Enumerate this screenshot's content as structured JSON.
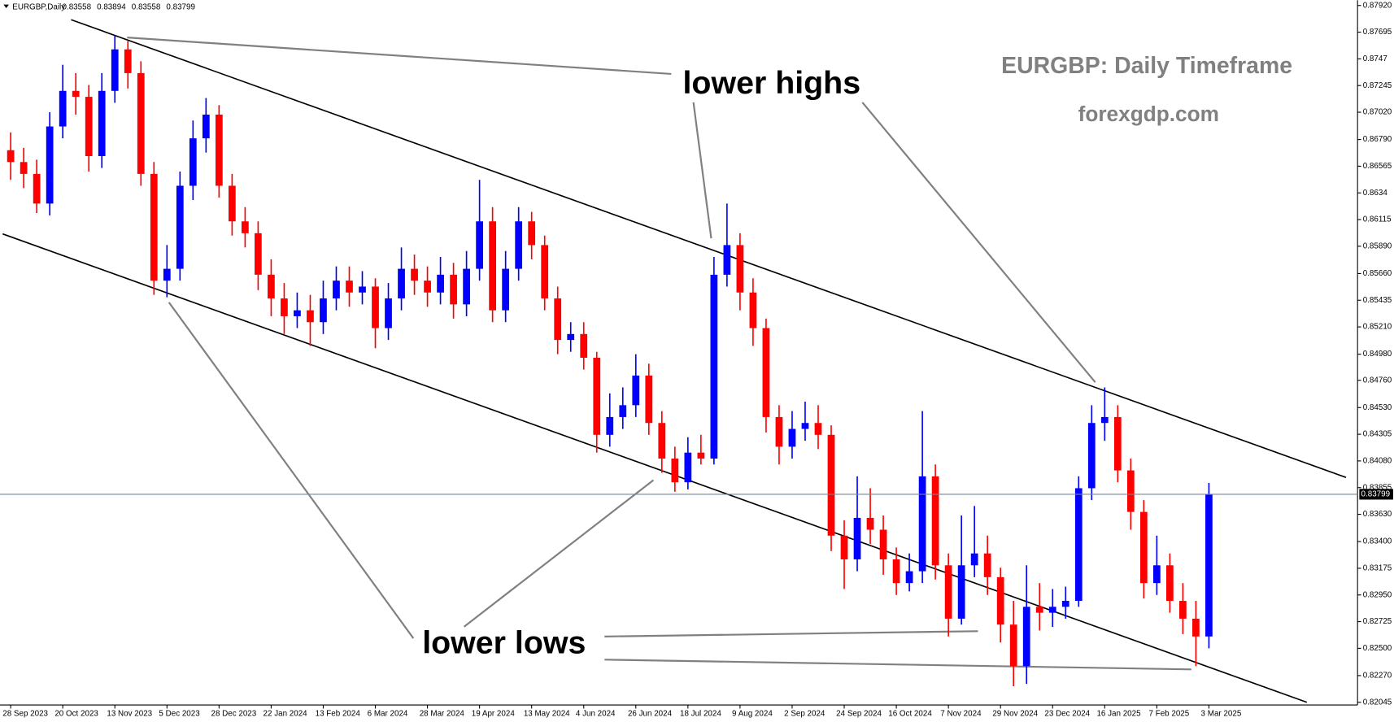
{
  "chart_data": {
    "type": "candlestick",
    "title": "EURGBP,Daily",
    "header_values": [
      0.83558,
      0.83894,
      0.83558,
      0.83799
    ],
    "annotations": [
      "lower highs",
      "lower lows",
      "EURGBP: Daily Timeframe",
      "forexgdp.com"
    ],
    "last_price": 0.83799,
    "up_color": "#0000ff",
    "down_color": "#ff0000",
    "ylim": [
      0.82045,
      0.8792
    ],
    "yticks": [
      {
        "value": 0.8792,
        "label": "0.87920"
      },
      0.87695,
      0.8747,
      0.87245,
      {
        "value": 0.8702,
        "label": "0.87020"
      },
      {
        "value": 0.8679,
        "label": "0.86790"
      },
      0.86565,
      0.8634,
      0.86115,
      {
        "value": 0.8589,
        "label": "0.85890"
      },
      {
        "value": 0.8566,
        "label": "0.85660"
      },
      0.85435,
      {
        "value": 0.8521,
        "label": "0.85210"
      },
      {
        "value": 0.8498,
        "label": "0.84980"
      },
      {
        "value": 0.8476,
        "label": "0.84760"
      },
      {
        "value": 0.8453,
        "label": "0.84530"
      },
      0.84305,
      {
        "value": 0.8408,
        "label": "0.84080"
      },
      0.83855,
      {
        "value": 0.8363,
        "label": "0.83630"
      },
      {
        "value": 0.834,
        "label": "0.83400"
      },
      0.83175,
      {
        "value": 0.8295,
        "label": "0.82950"
      },
      0.82725,
      {
        "value": 0.825,
        "label": "0.82500"
      },
      {
        "value": 0.8227,
        "label": "0.82270"
      },
      0.82045
    ],
    "categories": [
      "28 Sep 2023",
      null,
      null,
      null,
      "20 Oct 2023",
      null,
      null,
      null,
      "13 Nov 2023",
      null,
      null,
      null,
      "5 Dec 2023",
      null,
      null,
      null,
      "28 Dec 2023",
      null,
      null,
      null,
      "22 Jan 2024",
      null,
      null,
      null,
      "13 Feb 2024",
      null,
      null,
      null,
      "6 Mar 2024",
      null,
      null,
      null,
      "28 Mar 2024",
      null,
      null,
      null,
      "19 Apr 2024",
      null,
      null,
      null,
      "13 May 2024",
      null,
      null,
      null,
      "4 Jun 2024",
      null,
      null,
      null,
      "26 Jun 2024",
      null,
      null,
      null,
      "18 Jul 2024",
      null,
      null,
      null,
      "9 Aug 2024",
      null,
      null,
      null,
      "2 Sep 2024",
      null,
      null,
      null,
      "24 Sep 2024",
      null,
      null,
      null,
      "16 Oct 2024",
      null,
      null,
      null,
      "7 Nov 2024",
      null,
      null,
      null,
      "29 Nov 2024",
      null,
      null,
      null,
      "23 Dec 2024",
      null,
      null,
      null,
      "16 Jan 2025",
      null,
      null,
      null,
      "7 Feb 2025",
      null,
      null,
      null,
      "3 Mar 2025"
    ],
    "open": [
      0.867,
      0.866,
      0.865,
      0.8625,
      0.869,
      0.872,
      0.8715,
      0.8665,
      0.872,
      0.8755,
      0.8735,
      0.865,
      0.856,
      0.857,
      0.864,
      0.868,
      0.87,
      0.864,
      0.861,
      0.86,
      0.8565,
      0.8545,
      0.853,
      0.8535,
      0.8525,
      0.8545,
      0.856,
      0.855,
      0.8555,
      0.852,
      0.8545,
      0.857,
      0.856,
      0.855,
      0.8565,
      0.854,
      0.857,
      0.861,
      0.8535,
      0.857,
      0.861,
      0.859,
      0.8545,
      0.851,
      0.8515,
      0.8495,
      0.843,
      0.8445,
      0.8455,
      0.848,
      0.844,
      0.841,
      0.839,
      0.8415,
      0.841,
      0.8565,
      0.859,
      0.855,
      0.852,
      0.8445,
      0.842,
      0.8435,
      0.844,
      0.843,
      0.8345,
      0.8325,
      0.836,
      0.835,
      0.8325,
      0.8305,
      0.8315,
      0.8395,
      0.832,
      0.8275,
      0.832,
      0.833,
      0.831,
      0.827,
      0.8235,
      0.8285,
      0.828,
      0.8285,
      0.829,
      0.8385,
      0.844,
      0.8445,
      0.84,
      0.8365,
      0.8305,
      0.832,
      0.829,
      0.8275,
      0.826
    ],
    "high": [
      0.8685,
      0.8672,
      0.8662,
      0.8702,
      0.8742,
      0.8735,
      0.8725,
      0.8735,
      0.8767,
      0.8762,
      0.8745,
      0.866,
      0.859,
      0.8652,
      0.8695,
      0.8714,
      0.8708,
      0.865,
      0.8622,
      0.861,
      0.8578,
      0.8558,
      0.855,
      0.8548,
      0.856,
      0.8572,
      0.8572,
      0.8568,
      0.8562,
      0.8558,
      0.8588,
      0.8582,
      0.8572,
      0.858,
      0.8575,
      0.8585,
      0.8645,
      0.8622,
      0.8585,
      0.8622,
      0.8618,
      0.8598,
      0.8555,
      0.8525,
      0.8525,
      0.85,
      0.8465,
      0.847,
      0.8498,
      0.849,
      0.845,
      0.842,
      0.8428,
      0.843,
      0.858,
      0.8625,
      0.86,
      0.8562,
      0.8528,
      0.8455,
      0.845,
      0.8458,
      0.8455,
      0.8438,
      0.8358,
      0.8395,
      0.8385,
      0.8362,
      0.8335,
      0.833,
      0.845,
      0.8405,
      0.833,
      0.8362,
      0.837,
      0.8345,
      0.8318,
      0.829,
      0.832,
      0.8305,
      0.83,
      0.8302,
      0.8395,
      0.8455,
      0.847,
      0.8455,
      0.841,
      0.8375,
      0.8345,
      0.833,
      0.8305,
      0.829,
      0.83894
    ],
    "low": [
      0.8645,
      0.8638,
      0.8617,
      0.8615,
      0.868,
      0.87,
      0.8652,
      0.8655,
      0.871,
      0.8722,
      0.864,
      0.8548,
      0.8546,
      0.856,
      0.8628,
      0.8668,
      0.863,
      0.8598,
      0.8588,
      0.8552,
      0.853,
      0.8515,
      0.852,
      0.8505,
      0.8515,
      0.8535,
      0.8538,
      0.854,
      0.8503,
      0.851,
      0.8535,
      0.8548,
      0.8538,
      0.854,
      0.8528,
      0.853,
      0.856,
      0.8525,
      0.8525,
      0.856,
      0.8578,
      0.8535,
      0.8498,
      0.85,
      0.8485,
      0.8415,
      0.842,
      0.8435,
      0.8445,
      0.843,
      0.8398,
      0.8382,
      0.8384,
      0.8405,
      0.8405,
      0.8555,
      0.8535,
      0.8505,
      0.8432,
      0.8405,
      0.841,
      0.8425,
      0.8418,
      0.8332,
      0.83,
      0.8315,
      0.8338,
      0.8312,
      0.8295,
      0.8298,
      0.8305,
      0.8308,
      0.826,
      0.827,
      0.831,
      0.8295,
      0.8255,
      0.8218,
      0.822,
      0.8265,
      0.8268,
      0.8275,
      0.8285,
      0.8375,
      0.8425,
      0.839,
      0.835,
      0.8292,
      0.8295,
      0.828,
      0.8262,
      0.8235,
      0.825
    ],
    "close": [
      0.866,
      0.865,
      0.8625,
      0.869,
      0.872,
      0.8715,
      0.8665,
      0.872,
      0.8755,
      0.8735,
      0.865,
      0.856,
      0.857,
      0.864,
      0.868,
      0.87,
      0.864,
      0.861,
      0.86,
      0.8565,
      0.8545,
      0.853,
      0.8535,
      0.8525,
      0.8545,
      0.856,
      0.855,
      0.8555,
      0.852,
      0.8545,
      0.857,
      0.856,
      0.855,
      0.8565,
      0.854,
      0.857,
      0.861,
      0.8535,
      0.857,
      0.861,
      0.859,
      0.8545,
      0.851,
      0.8515,
      0.8495,
      0.843,
      0.8445,
      0.8455,
      0.848,
      0.844,
      0.841,
      0.839,
      0.8415,
      0.841,
      0.8565,
      0.859,
      0.855,
      0.852,
      0.8445,
      0.842,
      0.8435,
      0.844,
      0.843,
      0.8345,
      0.8325,
      0.836,
      0.835,
      0.8325,
      0.8305,
      0.8315,
      0.8395,
      0.832,
      0.8275,
      0.832,
      0.833,
      0.831,
      0.827,
      0.8235,
      0.8285,
      0.828,
      0.8285,
      0.829,
      0.8385,
      0.844,
      0.8445,
      0.84,
      0.8365,
      0.8305,
      0.832,
      0.829,
      0.8275,
      0.826,
      0.83799
    ]
  }
}
